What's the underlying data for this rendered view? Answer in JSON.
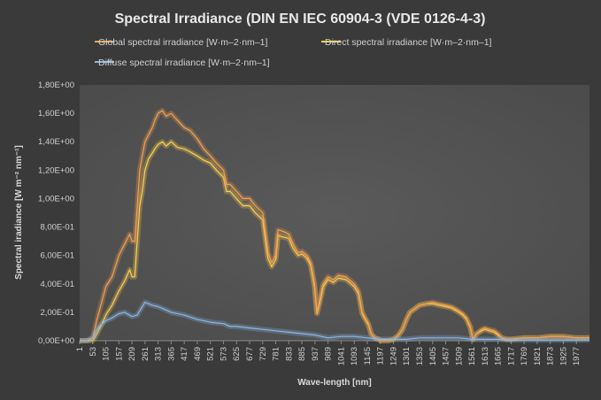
{
  "chart_data": {
    "type": "line",
    "title": "Spectral Irradiance (DIN EN IEC 60904-3 (VDE 0126-4-3)",
    "xlabel": "Wave-length [nm]",
    "ylabel": "Spectral iradiance [W m⁻² nm⁻¹]",
    "xlim": [
      1,
      2029
    ],
    "ylim": [
      0,
      1.8
    ],
    "grid": false,
    "legend_position": "top",
    "x_ticks": [
      "1",
      "53",
      "105",
      "157",
      "209",
      "261",
      "313",
      "365",
      "417",
      "469",
      "521",
      "573",
      "625",
      "677",
      "729",
      "781",
      "833",
      "885",
      "937",
      "989",
      "1041",
      "1093",
      "1145",
      "1197",
      "1249",
      "1301",
      "1353",
      "1405",
      "1457",
      "1509",
      "1561",
      "1613",
      "1665",
      "1717",
      "1769",
      "1821",
      "1873",
      "1925",
      "1977"
    ],
    "y_ticks": [
      "0,00E+00",
      "2,00E-01",
      "4,00E-01",
      "6,00E-01",
      "8,00E-01",
      "1,00E+00",
      "1,20E+00",
      "1,40E+00",
      "1,60E+00",
      "1,80E+00"
    ],
    "series": [
      {
        "name": "Global spectral irradiance [W·m–2·nm–1]",
        "color": "#f5a050",
        "x": [
          1,
          30,
          53,
          70,
          90,
          105,
          130,
          157,
          180,
          200,
          209,
          220,
          240,
          250,
          261,
          275,
          290,
          300,
          313,
          330,
          345,
          365,
          390,
          417,
          440,
          469,
          495,
          521,
          545,
          573,
          585,
          600,
          625,
          650,
          677,
          700,
          729,
          750,
          765,
          781,
          790,
          810,
          833,
          850,
          870,
          885,
          905,
          920,
          935,
          945,
          955,
          970,
          989,
          1010,
          1030,
          1060,
          1080,
          1093,
          1110,
          1125,
          1140,
          1150,
          1160,
          1175,
          1190,
          1197,
          1230,
          1249,
          1270,
          1285,
          1301,
          1315,
          1330,
          1353,
          1380,
          1405,
          1430,
          1457,
          1480,
          1500,
          1509,
          1525,
          1540,
          1555,
          1565,
          1580,
          1600,
          1613,
          1630,
          1650,
          1665,
          1680,
          1700,
          1717,
          1769,
          1821,
          1873,
          1925,
          1977,
          2029
        ],
        "y": [
          0,
          0,
          0.02,
          0.15,
          0.28,
          0.38,
          0.45,
          0.6,
          0.68,
          0.75,
          0.7,
          0.7,
          1.2,
          1.3,
          1.4,
          1.45,
          1.5,
          1.55,
          1.6,
          1.62,
          1.58,
          1.6,
          1.55,
          1.5,
          1.48,
          1.42,
          1.35,
          1.3,
          1.25,
          1.2,
          1.1,
          1.1,
          1.05,
          1.0,
          1.0,
          0.95,
          0.9,
          0.62,
          0.55,
          0.6,
          0.78,
          0.77,
          0.75,
          0.68,
          0.62,
          0.63,
          0.6,
          0.55,
          0.4,
          0.2,
          0.28,
          0.4,
          0.45,
          0.43,
          0.46,
          0.45,
          0.42,
          0.4,
          0.35,
          0.2,
          0.15,
          0.12,
          0.05,
          0.02,
          0.01,
          0,
          0,
          0.01,
          0.04,
          0.08,
          0.15,
          0.2,
          0.22,
          0.25,
          0.26,
          0.27,
          0.26,
          0.25,
          0.24,
          0.22,
          0.21,
          0.19,
          0.16,
          0.1,
          0.01,
          0.05,
          0.08,
          0.09,
          0.08,
          0.07,
          0.05,
          0.02,
          0.01,
          0.01,
          0.02,
          0.02,
          0.03,
          0.03,
          0.02,
          0.02
        ]
      },
      {
        "name": "Direct spectral irradiance [W·m–2·nm–1]",
        "color": "#ffd24d",
        "x": [
          1,
          30,
          53,
          70,
          90,
          105,
          130,
          157,
          180,
          200,
          209,
          220,
          240,
          250,
          261,
          275,
          290,
          300,
          313,
          330,
          345,
          365,
          390,
          417,
          440,
          469,
          495,
          521,
          545,
          573,
          585,
          600,
          625,
          650,
          677,
          700,
          729,
          750,
          765,
          781,
          790,
          810,
          833,
          850,
          870,
          885,
          905,
          920,
          935,
          945,
          955,
          970,
          989,
          1010,
          1030,
          1060,
          1080,
          1093,
          1110,
          1125,
          1140,
          1150,
          1160,
          1175,
          1190,
          1197,
          1230,
          1249,
          1270,
          1285,
          1301,
          1315,
          1330,
          1353,
          1380,
          1405,
          1430,
          1457,
          1480,
          1500,
          1509,
          1525,
          1540,
          1555,
          1565,
          1580,
          1600,
          1613,
          1630,
          1650,
          1665,
          1680,
          1700,
          1717,
          1769,
          1821,
          1873,
          1925,
          1977,
          2029
        ],
        "y": [
          0,
          0,
          0,
          0.05,
          0.12,
          0.18,
          0.25,
          0.35,
          0.42,
          0.5,
          0.45,
          0.45,
          0.95,
          1.05,
          1.2,
          1.28,
          1.32,
          1.35,
          1.38,
          1.4,
          1.37,
          1.4,
          1.36,
          1.35,
          1.33,
          1.3,
          1.27,
          1.25,
          1.2,
          1.15,
          1.05,
          1.05,
          1.0,
          0.95,
          0.95,
          0.9,
          0.85,
          0.58,
          0.52,
          0.57,
          0.74,
          0.73,
          0.72,
          0.65,
          0.6,
          0.61,
          0.58,
          0.53,
          0.38,
          0.19,
          0.26,
          0.38,
          0.43,
          0.41,
          0.44,
          0.43,
          0.4,
          0.38,
          0.33,
          0.19,
          0.14,
          0.11,
          0.05,
          0.02,
          0.01,
          0,
          0,
          0.01,
          0.04,
          0.08,
          0.15,
          0.2,
          0.22,
          0.25,
          0.26,
          0.26,
          0.25,
          0.24,
          0.23,
          0.21,
          0.2,
          0.18,
          0.15,
          0.09,
          0.01,
          0.05,
          0.07,
          0.08,
          0.07,
          0.06,
          0.04,
          0.02,
          0.01,
          0.01,
          0.02,
          0.02,
          0.03,
          0.03,
          0.02,
          0.02
        ]
      },
      {
        "name": "Diffuse spectral irradiance [W·m–2·nm–1]",
        "color": "#8ab8e6",
        "x": [
          1,
          30,
          53,
          70,
          90,
          105,
          130,
          157,
          180,
          209,
          230,
          261,
          290,
          313,
          340,
          365,
          417,
          469,
          521,
          573,
          600,
          625,
          677,
          729,
          781,
          833,
          885,
          937,
          989,
          1041,
          1093,
          1145,
          1197,
          1249,
          1301,
          1353,
          1405,
          1457,
          1509,
          1561,
          1613,
          1665,
          1717,
          1769,
          1821,
          1873,
          1925,
          1977,
          2029
        ],
        "y": [
          0,
          0,
          0.02,
          0.08,
          0.12,
          0.14,
          0.16,
          0.19,
          0.2,
          0.17,
          0.18,
          0.27,
          0.25,
          0.24,
          0.22,
          0.2,
          0.18,
          0.15,
          0.13,
          0.12,
          0.1,
          0.1,
          0.09,
          0.08,
          0.07,
          0.06,
          0.05,
          0.04,
          0.02,
          0.03,
          0.03,
          0.02,
          0.01,
          0.01,
          0.01,
          0.02,
          0.02,
          0.02,
          0.02,
          0.01,
          0.01,
          0.01,
          0.005,
          0.005,
          0.005,
          0.005,
          0.005,
          0.005,
          0.005
        ]
      }
    ]
  }
}
